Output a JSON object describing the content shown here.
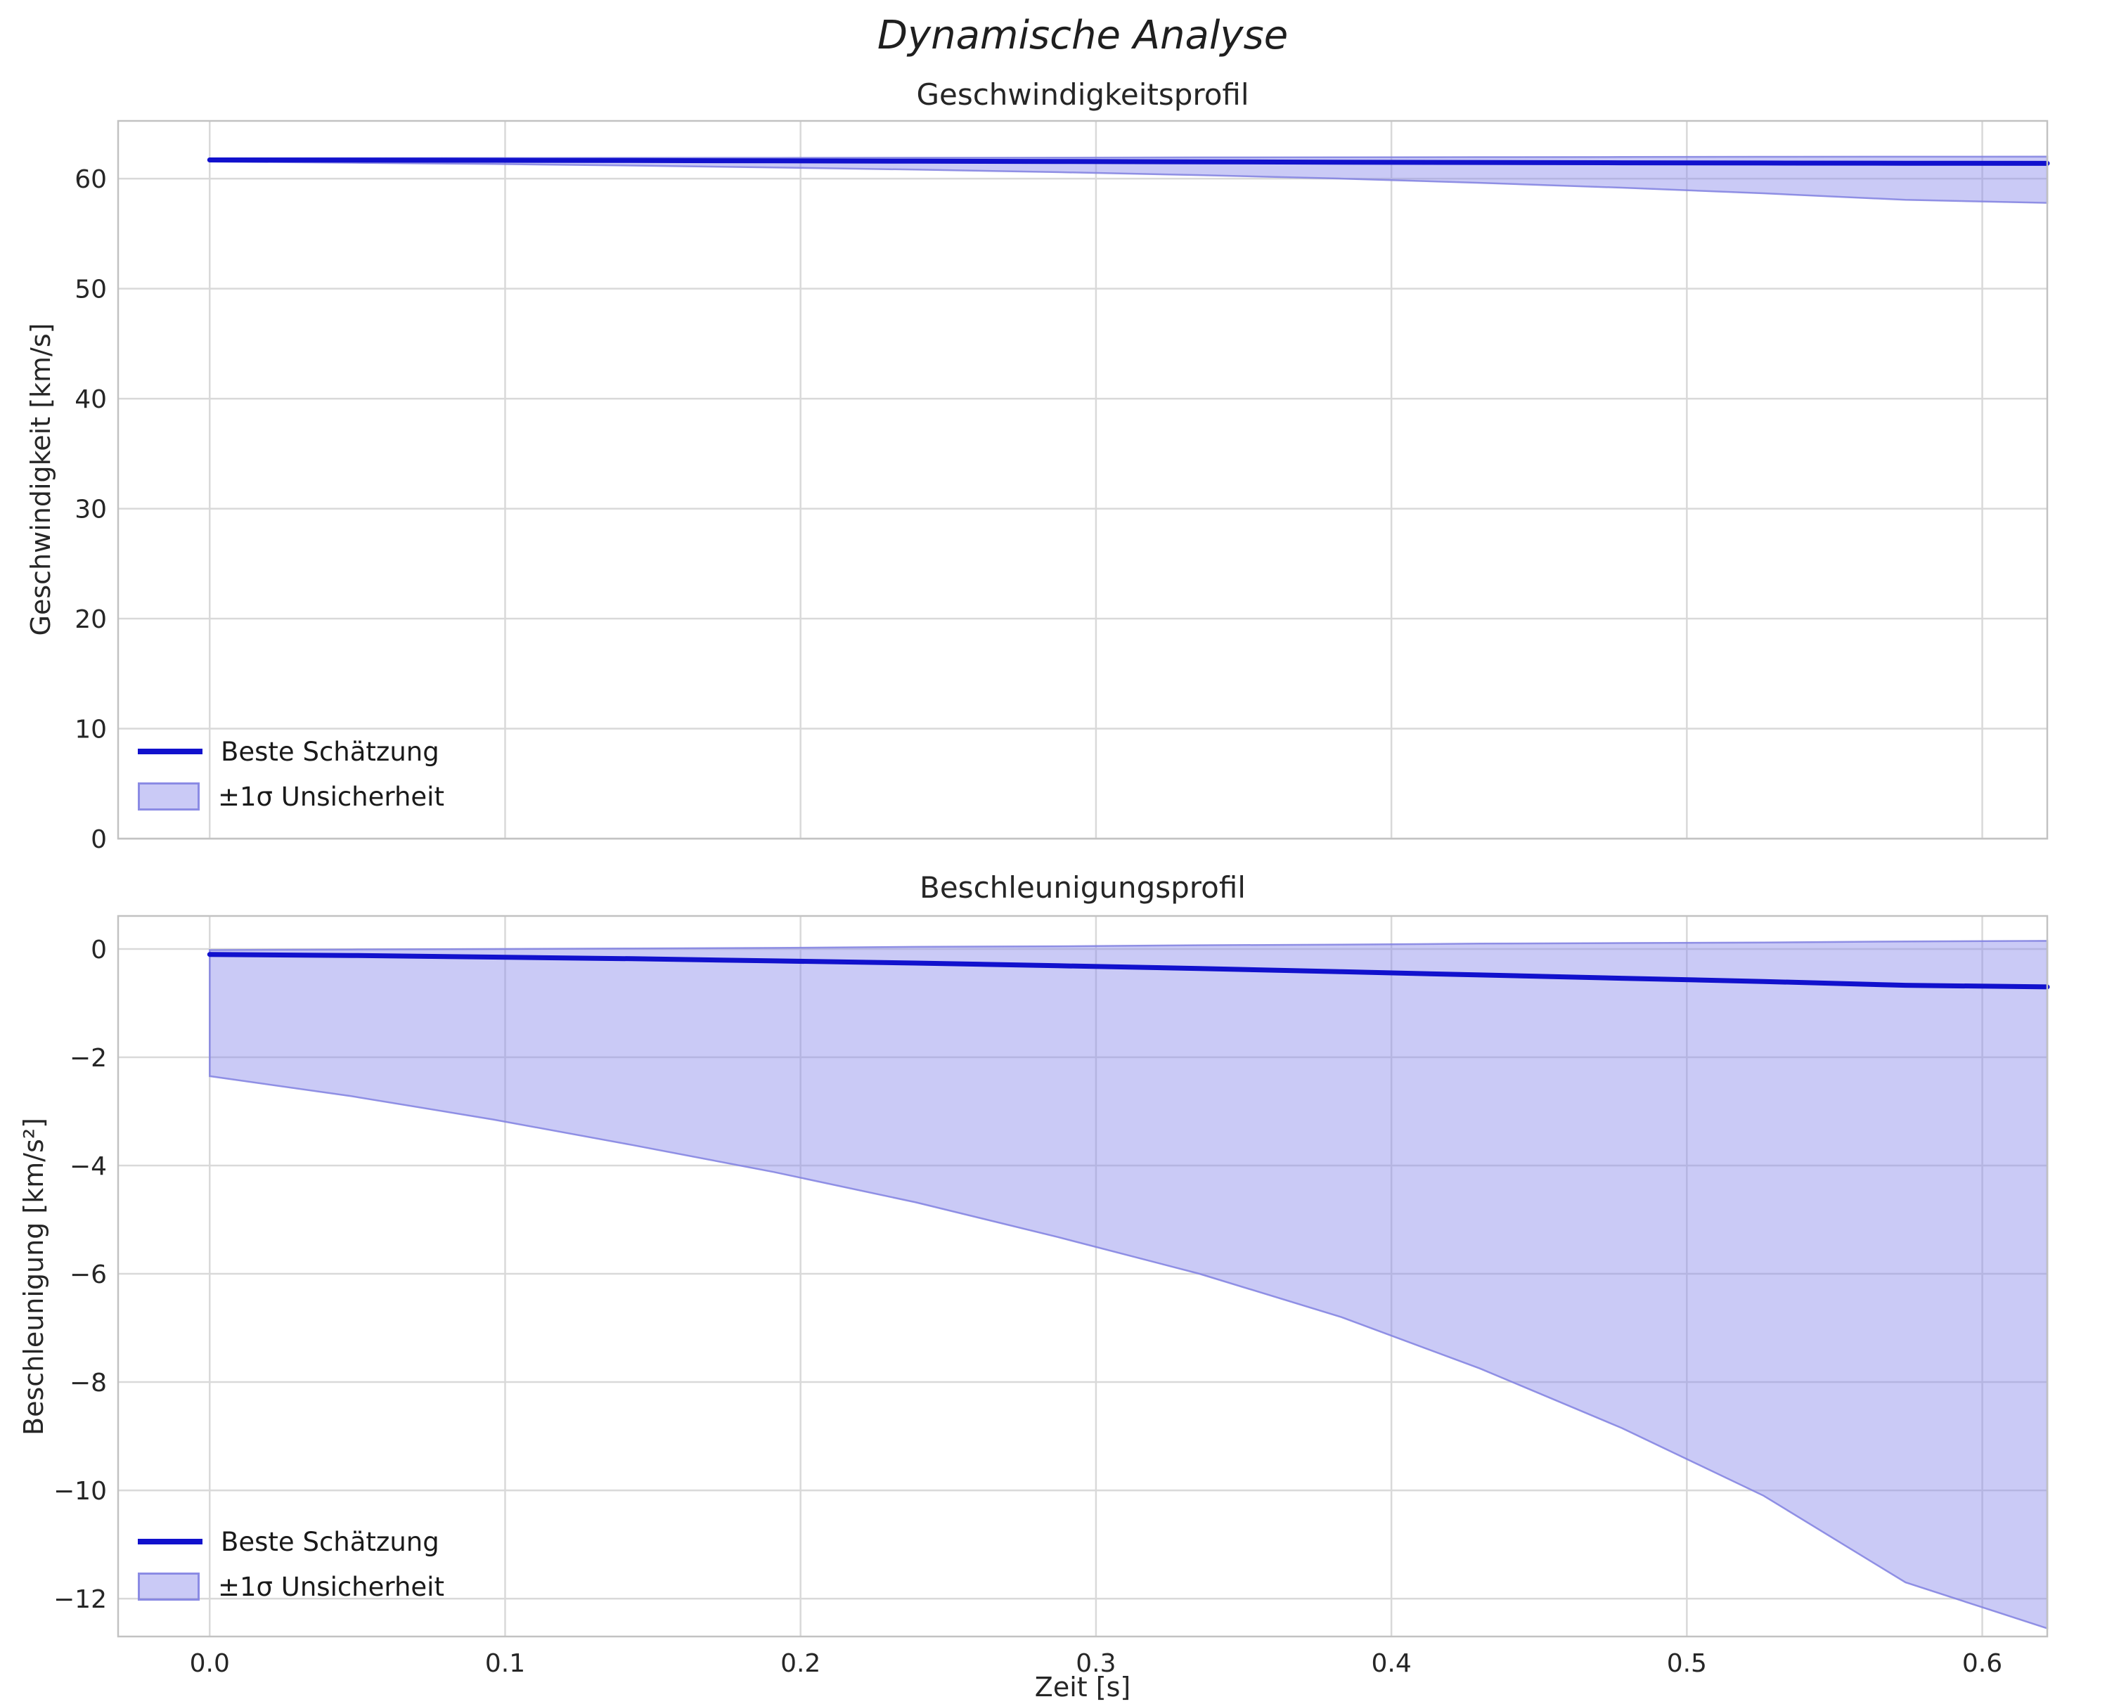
{
  "figure": {
    "title": "Dynamische Analyse"
  },
  "legend": {
    "line_label": "Beste Schätzung",
    "band_label": "±1σ Unsicherheit"
  },
  "colors": {
    "line": "#1111cd",
    "band_fill": "#8a8aec",
    "band_fill_opacity": 0.45,
    "band_edge": "#8080e0",
    "grid": "#d9d9d9",
    "spine": "#c2c2c2",
    "tick_text": "#262626"
  },
  "chart_data": [
    {
      "type": "line",
      "title": "Geschwindigkeitsprofil",
      "xlabel": "",
      "ylabel": "Geschwindigkeit [km/s]",
      "xlim": [
        -0.031,
        0.622
      ],
      "ylim": [
        0,
        65.25
      ],
      "grid": true,
      "legend_position": "lower left",
      "legend_entries": [
        "Beste Schätzung",
        "±1σ Unsicherheit"
      ],
      "xticks": [
        0.0,
        0.1,
        0.2,
        0.3,
        0.4,
        0.5,
        0.6
      ],
      "xticklabels": [],
      "yticks": [
        0,
        10,
        20,
        30,
        40,
        50,
        60
      ],
      "yticklabels": [
        "0",
        "10",
        "20",
        "30",
        "40",
        "50",
        "60"
      ],
      "x": [
        0,
        0.048,
        0.096,
        0.143,
        0.191,
        0.239,
        0.287,
        0.335,
        0.383,
        0.43,
        0.478,
        0.526,
        0.574,
        0.622
      ],
      "series": [
        {
          "name": "Beste Schätzung",
          "values": [
            61.7,
            61.69,
            61.67,
            61.65,
            61.62,
            61.59,
            61.56,
            61.53,
            61.5,
            61.47,
            61.44,
            61.42,
            61.4,
            61.39
          ]
        }
      ],
      "band": {
        "name": "±1σ Unsicherheit",
        "upper": [
          61.85,
          61.86,
          61.87,
          61.88,
          61.89,
          61.9,
          61.91,
          61.93,
          61.94,
          61.96,
          61.97,
          61.99,
          62.0,
          62.01
        ],
        "lower": [
          61.55,
          61.45,
          61.33,
          61.19,
          61.02,
          60.82,
          60.59,
          60.32,
          60.0,
          59.62,
          59.18,
          58.67,
          58.07,
          57.8
        ]
      }
    },
    {
      "type": "line",
      "title": "Beschleunigungsprofil",
      "xlabel": "Zeit [s]",
      "ylabel": "Beschleunigung [km/s²]",
      "xlim": [
        -0.031,
        0.622
      ],
      "ylim": [
        -12.7,
        0.61
      ],
      "grid": true,
      "legend_position": "lower left",
      "legend_entries": [
        "Beste Schätzung",
        "±1σ Unsicherheit"
      ],
      "xticks": [
        0.0,
        0.1,
        0.2,
        0.3,
        0.4,
        0.5,
        0.6
      ],
      "xticklabels": [
        "0.0",
        "0.1",
        "0.2",
        "0.3",
        "0.4",
        "0.5",
        "0.6"
      ],
      "yticks": [
        0,
        -2,
        -4,
        -6,
        -8,
        -10,
        -12
      ],
      "yticklabels": [
        "0",
        "−2",
        "−4",
        "−6",
        "−8",
        "−10",
        "−12"
      ],
      "x": [
        0,
        0.048,
        0.096,
        0.143,
        0.191,
        0.239,
        0.287,
        0.335,
        0.383,
        0.43,
        0.478,
        0.526,
        0.574,
        0.622
      ],
      "series": [
        {
          "name": "Beste Schätzung",
          "values": [
            -0.1,
            -0.12,
            -0.15,
            -0.18,
            -0.22,
            -0.26,
            -0.31,
            -0.36,
            -0.42,
            -0.48,
            -0.54,
            -0.6,
            -0.67,
            -0.7
          ]
        }
      ],
      "band": {
        "name": "±1σ Unsicherheit",
        "upper": [
          -0.02,
          -0.01,
          0.0,
          0.01,
          0.02,
          0.04,
          0.05,
          0.07,
          0.08,
          0.1,
          0.11,
          0.12,
          0.14,
          0.15
        ],
        "lower": [
          -2.35,
          -2.72,
          -3.15,
          -3.62,
          -4.12,
          -4.68,
          -5.32,
          -6.0,
          -6.8,
          -7.75,
          -8.85,
          -10.1,
          -11.7,
          -12.55
        ]
      }
    }
  ]
}
